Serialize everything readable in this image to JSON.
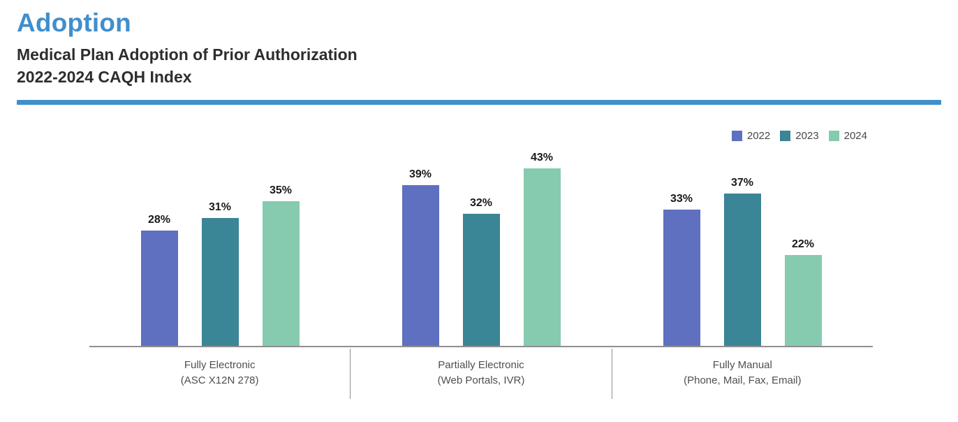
{
  "header": {
    "title": "Adoption",
    "subtitle_line1": "Medical Plan Adoption of Prior Authorization",
    "subtitle_line2": "2022-2024 CAQH Index"
  },
  "colors": {
    "accent_blue": "#3F8FCB",
    "axis_gray": "#8F8F8F",
    "value_label": "#1A1A1A",
    "category_label": "#4F4F4F",
    "series_2022": "#5F70C1",
    "series_2023": "#3A8596",
    "series_2024": "#86CAAF"
  },
  "chart_data": {
    "type": "bar",
    "title": "Medical Plan Adoption of Prior Authorization 2022-2024 CAQH Index",
    "value_suffix": "%",
    "ylim": [
      0,
      50
    ],
    "grid": false,
    "legend_position": "top-right",
    "categories": [
      {
        "line1": "Fully Electronic",
        "line2": "(ASC X12N 278)"
      },
      {
        "line1": "Partially Electronic",
        "line2": "(Web Portals, IVR)"
      },
      {
        "line1": "Fully Manual",
        "line2": "(Phone, Mail, Fax, Email)"
      }
    ],
    "series": [
      {
        "name": "2022",
        "color": "#5F70C1",
        "values": [
          28,
          39,
          33
        ]
      },
      {
        "name": "2023",
        "color": "#3A8596",
        "values": [
          31,
          32,
          37
        ]
      },
      {
        "name": "2024",
        "color": "#86CAAF",
        "values": [
          35,
          43,
          22
        ]
      }
    ]
  }
}
